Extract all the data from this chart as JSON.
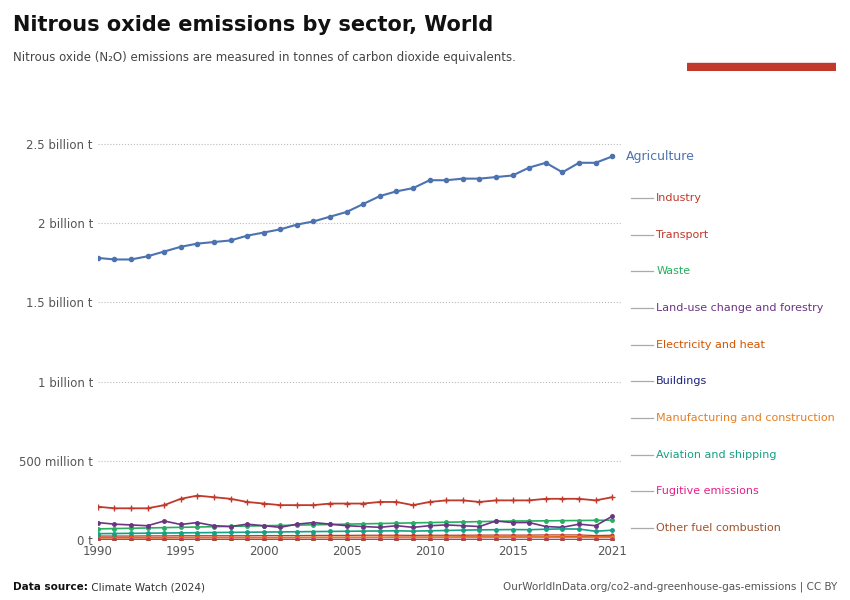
{
  "title": "Nitrous oxide emissions by sector, World",
  "subtitle": "Nitrous oxide (N₂O) emissions are measured in tonnes of carbon dioxide equivalents.",
  "footer_left": "Data source: Climate Watch (2024)",
  "footer_right": "OurWorldInData.org/co2-and-greenhouse-gas-emissions | CC BY",
  "years": [
    1990,
    1991,
    1992,
    1993,
    1994,
    1995,
    1996,
    1997,
    1998,
    1999,
    2000,
    2001,
    2002,
    2003,
    2004,
    2005,
    2006,
    2007,
    2008,
    2009,
    2010,
    2011,
    2012,
    2013,
    2014,
    2015,
    2016,
    2017,
    2018,
    2019,
    2020,
    2021
  ],
  "series": {
    "Agriculture": {
      "color": "#4c72b0",
      "values": [
        1780000000.0,
        1770000000.0,
        1770000000.0,
        1790000000.0,
        1820000000.0,
        1850000000.0,
        1870000000.0,
        1880000000.0,
        1890000000.0,
        1920000000.0,
        1940000000.0,
        1960000000.0,
        1990000000.0,
        2010000000.0,
        2040000000.0,
        2070000000.0,
        2120000000.0,
        2170000000.0,
        2200000000.0,
        2220000000.0,
        2270000000.0,
        2270000000.0,
        2280000000.0,
        2280000000.0,
        2290000000.0,
        2300000000.0,
        2350000000.0,
        2380000000.0,
        2320000000.0,
        2380000000.0,
        2380000000.0,
        2420000000.0
      ]
    },
    "Industry": {
      "color": "#c0392b",
      "values": [
        210000000.0,
        200000000.0,
        200000000.0,
        200000000.0,
        220000000.0,
        260000000.0,
        280000000.0,
        270000000.0,
        260000000.0,
        240000000.0,
        230000000.0,
        220000000.0,
        220000000.0,
        220000000.0,
        230000000.0,
        230000000.0,
        230000000.0,
        240000000.0,
        240000000.0,
        220000000.0,
        240000000.0,
        250000000.0,
        250000000.0,
        240000000.0,
        250000000.0,
        250000000.0,
        250000000.0,
        260000000.0,
        260000000.0,
        260000000.0,
        250000000.0,
        270000000.0
      ]
    },
    "Transport": {
      "color": "#c0392b",
      "values": [
        25000000.0,
        25000000.0,
        25000000.0,
        26000000.0,
        26000000.0,
        27000000.0,
        27000000.0,
        27000000.0,
        27000000.0,
        27000000.0,
        28000000.0,
        28000000.0,
        28000000.0,
        29000000.0,
        29000000.0,
        29000000.0,
        30000000.0,
        30000000.0,
        30000000.0,
        29000000.0,
        30000000.0,
        30000000.0,
        30000000.0,
        31000000.0,
        31000000.0,
        31000000.0,
        31000000.0,
        32000000.0,
        32000000.0,
        32000000.0,
        28000000.0,
        30000000.0
      ]
    },
    "Waste": {
      "color": "#27ae60",
      "values": [
        70000000.0,
        72000000.0,
        74000000.0,
        76000000.0,
        78000000.0,
        80000000.0,
        82000000.0,
        84000000.0,
        86000000.0,
        88000000.0,
        90000000.0,
        92000000.0,
        94000000.0,
        96000000.0,
        98000000.0,
        100000000.0,
        102000000.0,
        104000000.0,
        106000000.0,
        108000000.0,
        110000000.0,
        112000000.0,
        114000000.0,
        116000000.0,
        118000000.0,
        120000000.0,
        120000000.0,
        121000000.0,
        122000000.0,
        123000000.0,
        124000000.0,
        125000000.0
      ]
    },
    "Land-use change and forestry": {
      "color": "#6c3483",
      "values": [
        110000000.0,
        100000000.0,
        95000000.0,
        90000000.0,
        120000000.0,
        98000000.0,
        110000000.0,
        90000000.0,
        85000000.0,
        100000000.0,
        90000000.0,
        80000000.0,
        100000000.0,
        110000000.0,
        100000000.0,
        90000000.0,
        85000000.0,
        80000000.0,
        90000000.0,
        80000000.0,
        90000000.0,
        95000000.0,
        90000000.0,
        85000000.0,
        120000000.0,
        110000000.0,
        110000000.0,
        85000000.0,
        80000000.0,
        100000000.0,
        90000000.0,
        150000000.0
      ]
    },
    "Electricity and heat": {
      "color": "#d35400",
      "values": [
        16000000.0,
        16000000.0,
        16000000.0,
        16000000.0,
        16000000.0,
        17000000.0,
        17000000.0,
        17000000.0,
        17000000.0,
        17000000.0,
        17000000.0,
        17000000.0,
        17000000.0,
        18000000.0,
        18000000.0,
        18000000.0,
        18000000.0,
        18000000.0,
        19000000.0,
        19000000.0,
        19000000.0,
        19000000.0,
        20000000.0,
        20000000.0,
        20000000.0,
        20000000.0,
        20000000.0,
        20000000.0,
        21000000.0,
        21000000.0,
        20000000.0,
        21000000.0
      ]
    },
    "Buildings": {
      "color": "#1a237e",
      "values": [
        8000000.0,
        8000000.0,
        8000000.0,
        8000000.0,
        8000000.0,
        8000000.0,
        8000000.0,
        8000000.0,
        8000000.0,
        8000000.0,
        8000000.0,
        8000000.0,
        8000000.0,
        8000000.0,
        8000000.0,
        8000000.0,
        8000000.0,
        8000000.0,
        8000000.0,
        8000000.0,
        8000000.0,
        8000000.0,
        8000000.0,
        8000000.0,
        8000000.0,
        8000000.0,
        8000000.0,
        8000000.0,
        8000000.0,
        8000000.0,
        8000000.0,
        8000000.0
      ]
    },
    "Manufacturing and construction": {
      "color": "#e67e22",
      "values": [
        12000000.0,
        12000000.0,
        12000000.0,
        12000000.0,
        12000000.0,
        13000000.0,
        13000000.0,
        13000000.0,
        13000000.0,
        13000000.0,
        13000000.0,
        13000000.0,
        13000000.0,
        14000000.0,
        14000000.0,
        14000000.0,
        14000000.0,
        15000000.0,
        15000000.0,
        14000000.0,
        15000000.0,
        15000000.0,
        15000000.0,
        15000000.0,
        16000000.0,
        16000000.0,
        16000000.0,
        16000000.0,
        16000000.0,
        16000000.0,
        15000000.0,
        16000000.0
      ]
    },
    "Aviation and shipping": {
      "color": "#16a085",
      "values": [
        40000000.0,
        41000000.0,
        42000000.0,
        43000000.0,
        44000000.0,
        45000000.0,
        46000000.0,
        47000000.0,
        48000000.0,
        49000000.0,
        50000000.0,
        51000000.0,
        52000000.0,
        53000000.0,
        54000000.0,
        55000000.0,
        56000000.0,
        57000000.0,
        58000000.0,
        56000000.0,
        58000000.0,
        60000000.0,
        62000000.0,
        64000000.0,
        65000000.0,
        66000000.0,
        65000000.0,
        68000000.0,
        70000000.0,
        69000000.0,
        55000000.0,
        62000000.0
      ]
    },
    "Fugitive emissions": {
      "color": "#e91e8c",
      "values": [
        4000000.0,
        4000000.0,
        4000000.0,
        4000000.0,
        4000000.0,
        4000000.0,
        4000000.0,
        4000000.0,
        4000000.0,
        4000000.0,
        4000000.0,
        4000000.0,
        4000000.0,
        4000000.0,
        4000000.0,
        4000000.0,
        4000000.0,
        4000000.0,
        4000000.0,
        4000000.0,
        4000000.0,
        4000000.0,
        4000000.0,
        4000000.0,
        4000000.0,
        4000000.0,
        4000000.0,
        4000000.0,
        4000000.0,
        4000000.0,
        4000000.0,
        4000000.0
      ]
    },
    "Other fuel combustion": {
      "color": "#a0522d",
      "values": [
        2000000.0,
        2000000.0,
        2000000.0,
        2000000.0,
        2000000.0,
        2000000.0,
        2000000.0,
        2000000.0,
        2000000.0,
        2000000.0,
        2000000.0,
        2000000.0,
        2000000.0,
        2000000.0,
        2000000.0,
        2000000.0,
        2000000.0,
        2000000.0,
        2000000.0,
        2000000.0,
        2000000.0,
        2000000.0,
        2000000.0,
        2000000.0,
        2000000.0,
        2000000.0,
        2000000.0,
        2000000.0,
        2000000.0,
        2000000.0,
        2000000.0,
        2000000.0
      ]
    }
  },
  "yticks": [
    0,
    500000000.0,
    1000000000.0,
    1500000000.0,
    2000000000.0,
    2500000000.0
  ],
  "ytick_labels": [
    "0 t",
    "500 million t",
    "1 billion t",
    "1.5 billion t",
    "2 billion t",
    "2.5 billion t"
  ],
  "xlim": [
    1990,
    2021.5
  ],
  "ylim": [
    0,
    2650000000.0
  ],
  "background_color": "#ffffff",
  "legend_items": [
    {
      "label": "Industry",
      "color": "#c0392b"
    },
    {
      "label": "Transport",
      "color": "#c0392b"
    },
    {
      "label": "Waste",
      "color": "#27ae60"
    },
    {
      "label": "Land-use change and forestry",
      "color": "#6c3483"
    },
    {
      "label": "Electricity and heat",
      "color": "#d35400"
    },
    {
      "label": "Buildings",
      "color": "#1a237e"
    },
    {
      "label": "Manufacturing and construction",
      "color": "#e67e22"
    },
    {
      "label": "Aviation and shipping",
      "color": "#16a085"
    },
    {
      "label": "Fugitive emissions",
      "color": "#e91e8c"
    },
    {
      "label": "Other fuel combustion",
      "color": "#a0522d"
    }
  ]
}
